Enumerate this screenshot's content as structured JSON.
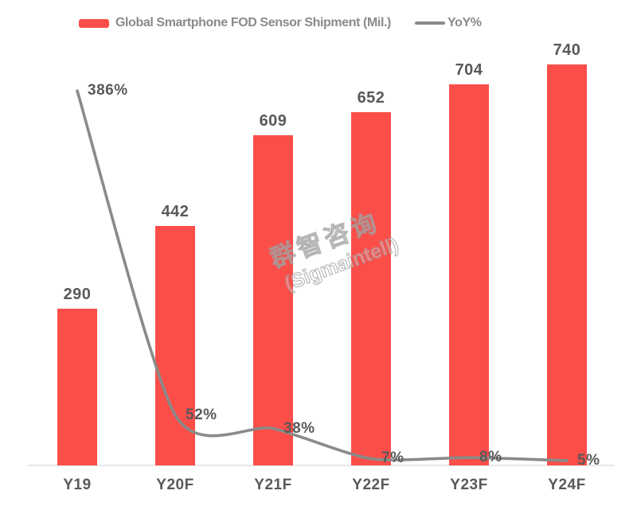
{
  "legend": {
    "bar_label": "Global Smartphone FOD Sensor Shipment (Mil.)",
    "line_label": "YoY%"
  },
  "watermark": {
    "cn": "群智咨询",
    "en": "(Sigmaintell)"
  },
  "colors": {
    "bar": "#fb4e49",
    "line": "#8a8a8a",
    "label": "#595959",
    "legend_text": "#8a8a8a",
    "axis": "#e7e7e7"
  },
  "chart_data": {
    "type": "bar",
    "title": "",
    "categories": [
      "Y19",
      "Y20F",
      "Y21F",
      "Y22F",
      "Y23F",
      "Y24F"
    ],
    "series": [
      {
        "name": "Global Smartphone FOD Sensor Shipment (Mil.)",
        "type": "bar",
        "values": [
          290,
          442,
          609,
          652,
          704,
          740
        ],
        "labels": [
          "290",
          "442",
          "609",
          "652",
          "704",
          "740"
        ]
      },
      {
        "name": "YoY%",
        "type": "line",
        "smooth": true,
        "values": [
          386,
          52,
          38,
          7,
          8,
          5
        ],
        "labels": [
          "386%",
          "52%",
          "38%",
          "7%",
          "8%",
          "5%"
        ]
      }
    ],
    "xlabel": "",
    "ylabel": "",
    "ylim": [
      0,
      780
    ],
    "y2lim": [
      0,
      400
    ],
    "grid": false,
    "axes_visible": false,
    "value_labels": true,
    "legend_position": "top-center"
  }
}
